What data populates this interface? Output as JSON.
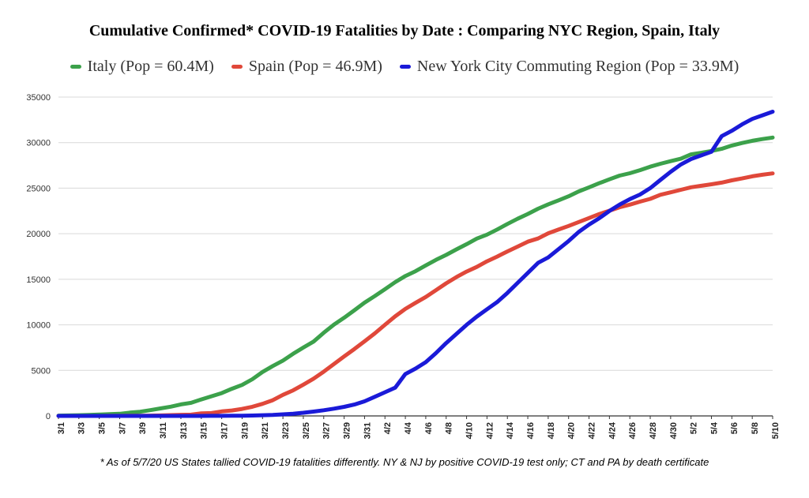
{
  "chart_data": {
    "type": "line",
    "title": "Cumulative Confirmed* COVID-19 Fatalities by Date : Comparing NYC Region, Spain, Italy",
    "legend_position": "top",
    "grid": true,
    "ylim": [
      0,
      35000
    ],
    "y_ticks": [
      "0",
      "5000",
      "10000",
      "15000",
      "20000",
      "25000",
      "30000",
      "35000"
    ],
    "x_ticks": [
      "3/1",
      "3/3",
      "3/5",
      "3/7",
      "3/9",
      "3/11",
      "3/13",
      "3/15",
      "3/17",
      "3/19",
      "3/21",
      "3/23",
      "3/25",
      "3/27",
      "3/29",
      "3/31",
      "4/2",
      "4/4",
      "4/6",
      "4/8",
      "4/10",
      "4/12",
      "4/14",
      "4/16",
      "4/18",
      "4/20",
      "4/22",
      "4/24",
      "4/26",
      "4/28",
      "4/30",
      "5/2",
      "5/4",
      "5/6",
      "5/8",
      "5/10"
    ],
    "x": [
      "3/1",
      "3/2",
      "3/3",
      "3/4",
      "3/5",
      "3/6",
      "3/7",
      "3/8",
      "3/9",
      "3/10",
      "3/11",
      "3/12",
      "3/13",
      "3/14",
      "3/15",
      "3/16",
      "3/17",
      "3/18",
      "3/19",
      "3/20",
      "3/21",
      "3/22",
      "3/23",
      "3/24",
      "3/25",
      "3/26",
      "3/27",
      "3/28",
      "3/29",
      "3/30",
      "3/31",
      "4/1",
      "4/2",
      "4/3",
      "4/4",
      "4/5",
      "4/6",
      "4/7",
      "4/8",
      "4/9",
      "4/10",
      "4/11",
      "4/12",
      "4/13",
      "4/14",
      "4/15",
      "4/16",
      "4/17",
      "4/18",
      "4/19",
      "4/20",
      "4/21",
      "4/22",
      "4/23",
      "4/24",
      "4/25",
      "4/26",
      "4/27",
      "4/28",
      "4/29",
      "4/30",
      "5/1",
      "5/2",
      "5/3",
      "5/4",
      "5/5",
      "5/6",
      "5/7",
      "5/8",
      "5/9",
      "5/10"
    ],
    "series": [
      {
        "name": "Italy (Pop = 60.4M)",
        "color": "#3ca14b",
        "values": [
          34,
          52,
          79,
          107,
          148,
          197,
          233,
          366,
          463,
          631,
          827,
          1016,
          1266,
          1441,
          1809,
          2158,
          2503,
          2978,
          3405,
          4032,
          4825,
          5476,
          6077,
          6820,
          7503,
          8165,
          9134,
          10023,
          10779,
          11591,
          12428,
          13155,
          13915,
          14681,
          15362,
          15887,
          16523,
          17127,
          17669,
          18279,
          18849,
          19468,
          19899,
          20465,
          21067,
          21645,
          22170,
          22745,
          23227,
          23660,
          24114,
          24648,
          25085,
          25549,
          25969,
          26384,
          26644,
          26977,
          27359,
          27682,
          27967,
          28236,
          28710,
          28884,
          29079,
          29315,
          29684,
          29958,
          30201,
          30395,
          30560
        ]
      },
      {
        "name": "Spain (Pop = 46.9M)",
        "color": "#e0483a",
        "values": [
          0,
          0,
          1,
          2,
          3,
          5,
          10,
          17,
          28,
          35,
          54,
          84,
          121,
          136,
          288,
          309,
          491,
          598,
          767,
          1002,
          1326,
          1720,
          2311,
          2808,
          3434,
          4089,
          4858,
          5690,
          6528,
          7340,
          8189,
          9053,
          10003,
          10935,
          11744,
          12418,
          13055,
          13798,
          14555,
          15238,
          15843,
          16353,
          16972,
          17489,
          18056,
          18579,
          19130,
          19478,
          20043,
          20453,
          20852,
          21282,
          21717,
          22157,
          22524,
          22902,
          23190,
          23521,
          23822,
          24275,
          24543,
          24824,
          25100,
          25264,
          25428,
          25613,
          25857,
          26070,
          26299,
          26478,
          26621
        ]
      },
      {
        "name": "New York City Commuting Region (Pop = 33.9M)",
        "color": "#1a1ad8",
        "values": [
          0,
          0,
          0,
          0,
          0,
          0,
          0,
          0,
          0,
          0,
          0,
          0,
          0,
          0,
          2,
          5,
          10,
          17,
          30,
          45,
          75,
          110,
          170,
          240,
          350,
          480,
          620,
          800,
          1000,
          1250,
          1600,
          2100,
          2600,
          3100,
          4600,
          5200,
          5900,
          6900,
          8000,
          9000,
          10000,
          10900,
          11700,
          12500,
          13500,
          14600,
          15700,
          16800,
          17400,
          18300,
          19200,
          20200,
          21000,
          21700,
          22500,
          23200,
          23800,
          24300,
          25000,
          25900,
          26800,
          27600,
          28200,
          28600,
          29000,
          30700,
          31300,
          32000,
          32600,
          33000,
          33400
        ]
      }
    ],
    "footnote": "* As of 5/7/20 US States tallied COVID-19 fatalities differently. NY & NJ by positive COVID-19 test only; CT and PA by death certificate"
  }
}
